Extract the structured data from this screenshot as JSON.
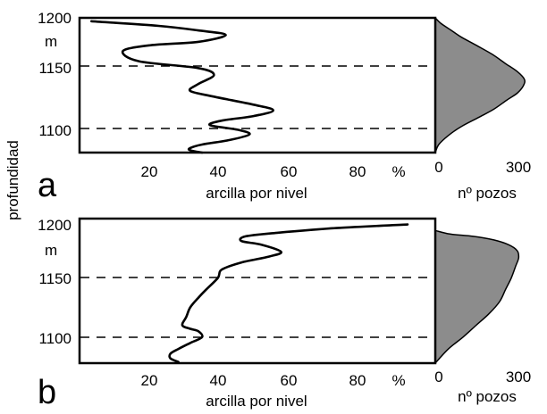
{
  "ylabel": "profundidad",
  "chart_data": [
    {
      "type": "line",
      "panel_label": "a",
      "depth_unit": "m",
      "depth_ticks": [
        "1200",
        "1150",
        "1100"
      ],
      "ylim": [
        1082,
        1200
      ],
      "xlabel": "arcilla por nivel",
      "x_unit": "%",
      "x_ticks": [
        "20",
        "40",
        "60",
        "80"
      ],
      "xlim": [
        0,
        90
      ],
      "dashed_lines_at": [
        1150,
        1100
      ],
      "clay_profile": {
        "x": [
          3,
          20,
          30,
          37,
          30,
          18,
          11,
          15,
          30,
          34,
          30,
          28,
          34,
          44,
          49,
          44,
          36,
          33,
          40,
          43,
          38,
          31,
          28,
          28,
          31
        ],
        "y": [
          1197,
          1193,
          1189,
          1185,
          1179,
          1176,
          1171,
          1162,
          1156,
          1150,
          1142,
          1136,
          1131,
          1124,
          1119,
          1114,
          1110,
          1106,
          1102,
          1098,
          1093,
          1089,
          1086,
          1084,
          1082
        ]
      },
      "well_count_histogram": {
        "xlabel": "nº pozos",
        "x_ticks": [
          "0",
          "300"
        ],
        "xlim": [
          0,
          330
        ],
        "fill": "#8c8c8c",
        "count": [
          0,
          20,
          55,
          90,
          140,
          195,
          240,
          280,
          305,
          300,
          280,
          245,
          200,
          150,
          90,
          45,
          12,
          0
        ],
        "depth": [
          1200,
          1195,
          1189,
          1183,
          1176,
          1168,
          1160,
          1153,
          1146,
          1140,
          1134,
          1128,
          1120,
          1113,
          1105,
          1097,
          1089,
          1082
        ]
      }
    },
    {
      "type": "line",
      "panel_label": "b",
      "depth_unit": "m",
      "depth_ticks": [
        "1200",
        "1150",
        "1100"
      ],
      "ylim": [
        1078,
        1200
      ],
      "xlabel": "arcilla por nivel",
      "x_unit": "%",
      "x_ticks": [
        "20",
        "40",
        "60",
        "80"
      ],
      "xlim": [
        0,
        90
      ],
      "dashed_lines_at": [
        1150,
        1100
      ],
      "clay_profile": {
        "x": [
          83,
          65,
          50,
          42,
          41,
          46,
          51,
          48,
          41,
          36,
          35,
          32,
          30,
          28,
          27,
          26,
          28,
          30,
          31,
          28,
          25,
          23,
          23,
          25
        ],
        "y": [
          1195,
          1192,
          1188,
          1185,
          1181,
          1178,
          1172,
          1168,
          1163,
          1157,
          1150,
          1140,
          1133,
          1125,
          1117,
          1110,
          1107,
          1105,
          1100,
          1095,
          1090,
          1086,
          1082,
          1079
        ]
      },
      "well_count_histogram": {
        "xlabel": "nº pozos",
        "x_ticks": [
          "0",
          "300"
        ],
        "xlim": [
          0,
          330
        ],
        "fill": "#8c8c8c",
        "count": [
          0,
          50,
          130,
          200,
          250,
          280,
          285,
          275,
          260,
          240,
          220,
          185,
          140,
          95,
          45,
          0
        ],
        "depth": [
          1190,
          1187,
          1185,
          1182,
          1178,
          1173,
          1167,
          1160,
          1150,
          1140,
          1130,
          1120,
          1110,
          1100,
          1090,
          1078
        ]
      }
    }
  ]
}
